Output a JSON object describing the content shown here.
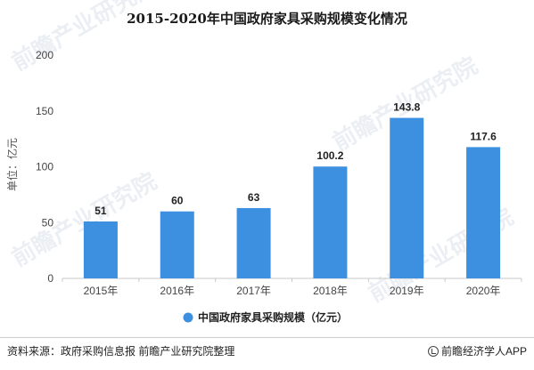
{
  "chart_data": {
    "type": "bar",
    "title": "2015-2020年中国政府家具采购规模变化情况",
    "categories": [
      "2015年",
      "2016年",
      "2017年",
      "2018年",
      "2019年",
      "2020年"
    ],
    "series": [
      {
        "name": "中国政府家具采购规模（亿元）",
        "values": [
          51,
          60,
          63,
          100.2,
          143.8,
          117.6
        ]
      }
    ],
    "data_labels": [
      "51",
      "60",
      "63",
      "100.2",
      "143.8",
      "117.6"
    ],
    "ylabel": "单位：亿元",
    "ylim": [
      0,
      200
    ],
    "yticks": [
      0,
      50,
      100,
      150,
      200
    ],
    "grid": false,
    "legend_position": "bottom-center",
    "bar_color": "#3d8fe0"
  },
  "footer": {
    "source": "资料来源：政府采购信息报 前瞻产业研究院整理",
    "brand": "前瞻经济学人APP"
  }
}
